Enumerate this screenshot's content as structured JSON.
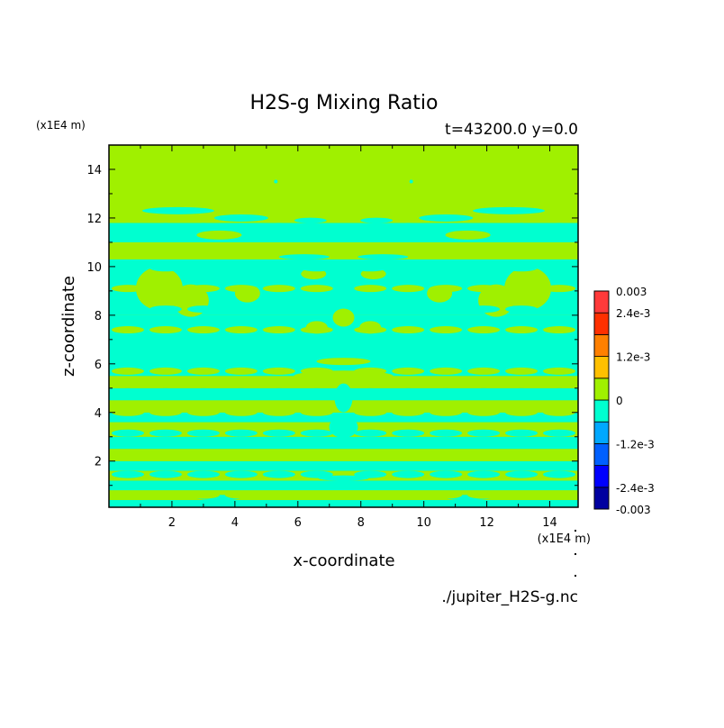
{
  "chart_data": {
    "type": "heatmap",
    "title": "H2S-g Mixing Ratio",
    "subtitle": "t=43200.0 y=0.0",
    "xlabel": "x-coordinate",
    "ylabel": "z-coordinate",
    "x_scale_note": "(x1E4 m)",
    "y_scale_note": "(x1E4 m)",
    "source_file": "./jupiter_H2S-g.nc",
    "xlim": [
      0.0,
      14.9
    ],
    "ylim": [
      0.1,
      15.0
    ],
    "x_ticks": [
      2,
      4,
      6,
      8,
      10,
      12,
      14
    ],
    "y_ticks": [
      2,
      4,
      6,
      8,
      10,
      12,
      14
    ],
    "colorbar": {
      "levels": [
        -0.003,
        -0.0024,
        -0.0018,
        -0.0012,
        -0.0006,
        0,
        0.0006,
        0.0012,
        0.0018,
        0.0024,
        0.003
      ],
      "colors": [
        "#0000a0",
        "#0000ff",
        "#0060ff",
        "#00a8ff",
        "#00ffd0",
        "#a0f000",
        "#ffc000",
        "#ff8000",
        "#ff3000",
        "#ff3a3a"
      ],
      "labels": [
        "-0.003",
        "-2.4e-3",
        "-1.2e-3",
        "0",
        "1.2e-3",
        "2.4e-3",
        "0.003"
      ],
      "label_values": [
        -0.003,
        -0.0024,
        -0.0012,
        0,
        0.0012,
        0.0024,
        0.003
      ]
    },
    "fill_colors": {
      "zero_to_positive": "#a0f000",
      "negative_to_zero": "#00ffd0"
    },
    "bands": [
      {
        "z": [
          0.1,
          0.4
        ],
        "level": "neg"
      },
      {
        "z": [
          0.4,
          0.8
        ],
        "level": "pos"
      },
      {
        "z": [
          0.8,
          1.2
        ],
        "level": "neg"
      },
      {
        "z": [
          1.2,
          1.6
        ],
        "level": "pos"
      },
      {
        "z": [
          1.6,
          2.0
        ],
        "level": "neg"
      },
      {
        "z": [
          2.0,
          2.5
        ],
        "level": "pos"
      },
      {
        "z": [
          2.5,
          3.0
        ],
        "level": "neg"
      },
      {
        "z": [
          3.0,
          3.6
        ],
        "level": "pos"
      },
      {
        "z": [
          3.6,
          4.0
        ],
        "level": "neg"
      },
      {
        "z": [
          4.0,
          4.5
        ],
        "level": "pos"
      },
      {
        "z": [
          4.5,
          5.0
        ],
        "level": "neg"
      },
      {
        "z": [
          5.0,
          5.5
        ],
        "level": "pos"
      },
      {
        "z": [
          5.5,
          8.0
        ],
        "level": "neg"
      },
      {
        "z": [
          8.0,
          10.3
        ],
        "level": "neg"
      },
      {
        "z": [
          10.3,
          11.0
        ],
        "level": "pos"
      },
      {
        "z": [
          11.0,
          11.8
        ],
        "level": "neg"
      },
      {
        "z": [
          11.8,
          12.5
        ],
        "level": "pos"
      },
      {
        "z": [
          12.5,
          15.0
        ],
        "level": "pos"
      }
    ]
  }
}
